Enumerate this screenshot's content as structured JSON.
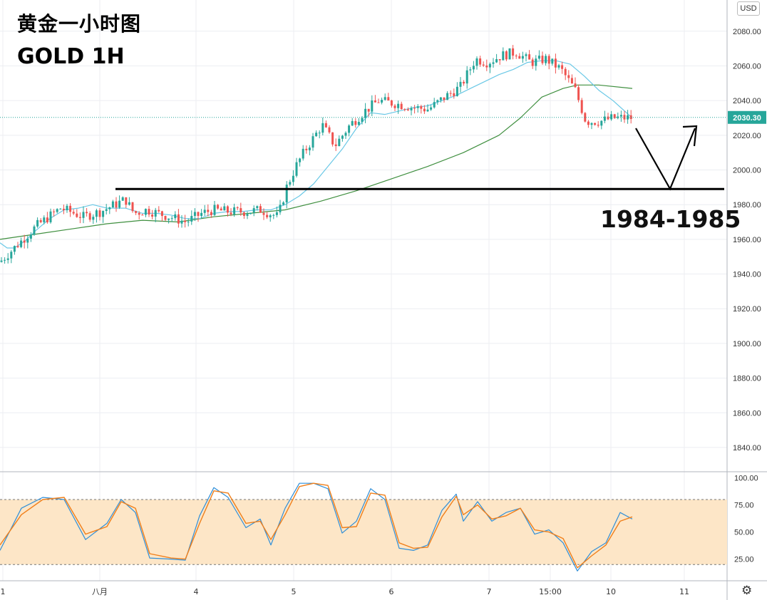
{
  "header": {
    "title_cn": "黄金一小时图",
    "title_en": "GOLD 1H"
  },
  "currency_badge": "USD",
  "annotation": {
    "support_label": "1984-1985",
    "support_level": 1989
  },
  "settings_icon": "gear-icon",
  "colors": {
    "up": "#26a69a",
    "down": "#ef5350",
    "ma_fast": "#6ac8e6",
    "ma_slow": "#3f8f3f",
    "stoch_k": "#2e8ed8",
    "stoch_d": "#f07f1a",
    "stoch_band": "#fde6c7"
  },
  "chart_data": {
    "type": "candlestick",
    "price_axis": {
      "ylim": [
        1826,
        2098
      ],
      "ticks": [
        "2080.00",
        "2060.00",
        "2040.00",
        "2020.00",
        "2000.00",
        "1980.00",
        "1960.00",
        "1940.00",
        "1920.00",
        "1900.00",
        "1880.00",
        "1860.00",
        "1840.00"
      ]
    },
    "last_price": "2030.30",
    "time_labels": [
      "1",
      "八月",
      "4",
      "5",
      "6",
      "7",
      "15:00",
      "10",
      "11"
    ],
    "series": [
      {
        "name": "",
        "kind": "ma_fast",
        "x": [
          0,
          10,
          20,
          35,
          50,
          70,
          90,
          110,
          130,
          150,
          165,
          176,
          200,
          220,
          240,
          260,
          280,
          300,
          320,
          340,
          360,
          380,
          400,
          420,
          440,
          460,
          480,
          500,
          520,
          540,
          560,
          580,
          600,
          620,
          640,
          660,
          680,
          700,
          720,
          740,
          760,
          780,
          800,
          820,
          840,
          860,
          887
        ],
        "y": [
          1958,
          1955,
          1955,
          1959,
          1965,
          1972,
          1977,
          1978,
          1980,
          1978,
          1978,
          1978,
          1975,
          1975,
          1974,
          1972,
          1972,
          1975,
          1976,
          1976,
          1977,
          1977,
          1980,
          1985,
          1992,
          2002,
          2012,
          2024,
          2033,
          2032,
          2034,
          2036,
          2037,
          2040,
          2043,
          2047,
          2051,
          2055,
          2058,
          2062,
          2063,
          2063,
          2061,
          2054,
          2046,
          2040,
          2030
        ]
      },
      {
        "name": "",
        "kind": "ma_slow",
        "x": [
          0,
          50,
          100,
          150,
          200,
          250,
          300,
          350,
          400,
          450,
          500,
          550,
          600,
          650,
          700,
          730,
          760,
          790,
          810,
          840,
          887
        ],
        "y": [
          1960,
          1963,
          1966,
          1969,
          1971,
          1970,
          1973,
          1975,
          1977,
          1982,
          1988,
          1995,
          2002,
          2010,
          2020,
          2030,
          2042,
          2047,
          2049,
          2049,
          2047
        ]
      },
      {
        "name": "",
        "kind": "candles",
        "x": [
          0,
          52,
          85,
          117,
          141,
          176,
          188,
          206,
          230,
          261,
          283,
          299,
          321,
          345,
          366,
          390,
          402,
          415,
          426,
          452,
          470,
          491,
          512,
          531,
          558,
          580,
          601,
          624,
          646,
          667,
          684,
          704,
          724,
          745,
          766,
          787,
          807,
          822,
          841,
          861,
          886
        ],
        "y": [
          1947,
          1968,
          1978,
          1973,
          1976,
          1983,
          1975,
          1977,
          1974,
          1970,
          1975,
          1977,
          1976,
          1976,
          1977,
          1973,
          1990,
          2002,
          2010,
          2026,
          2014,
          2026,
          2034,
          2040,
          2038,
          2036,
          2035,
          2042,
          2048,
          2064,
          2062,
          2066,
          2068,
          2062,
          2064,
          2058,
          2046,
          2028,
          2028,
          2030,
          2030
        ]
      }
    ],
    "stochastic": {
      "ylim": [
        5,
        105
      ],
      "ticks": [
        "100.00",
        "75.00",
        "50.00",
        "25.00"
      ],
      "overbought": 80,
      "oversold": 20,
      "k": {
        "x": [
          0,
          30,
          60,
          90,
          120,
          150,
          170,
          190,
          210,
          240,
          260,
          280,
          300,
          320,
          345,
          365,
          380,
          400,
          420,
          440,
          460,
          480,
          500,
          520,
          540,
          560,
          580,
          600,
          620,
          640,
          650,
          670,
          690,
          710,
          730,
          750,
          770,
          790,
          810,
          830,
          850,
          870,
          887
        ],
        "y": [
          33,
          72,
          82,
          80,
          43,
          58,
          80,
          68,
          26,
          25,
          24,
          65,
          91,
          82,
          54,
          62,
          38,
          72,
          95,
          95,
          90,
          49,
          60,
          90,
          80,
          35,
          33,
          38,
          70,
          85,
          60,
          78,
          60,
          68,
          72,
          48,
          52,
          40,
          14,
          32,
          40,
          68,
          62
        ]
      },
      "d": {
        "x": [
          0,
          30,
          60,
          90,
          120,
          150,
          170,
          190,
          210,
          240,
          260,
          280,
          300,
          320,
          345,
          365,
          380,
          400,
          420,
          440,
          460,
          480,
          500,
          520,
          540,
          560,
          580,
          600,
          620,
          640,
          650,
          670,
          690,
          710,
          730,
          750,
          770,
          790,
          810,
          830,
          850,
          870,
          887
        ],
        "y": [
          38,
          66,
          80,
          82,
          48,
          55,
          78,
          72,
          30,
          26,
          25,
          58,
          88,
          86,
          58,
          60,
          43,
          66,
          92,
          95,
          93,
          54,
          55,
          86,
          84,
          40,
          35,
          36,
          64,
          83,
          66,
          75,
          62,
          65,
          72,
          52,
          50,
          44,
          17,
          28,
          38,
          60,
          64
        ]
      }
    }
  }
}
